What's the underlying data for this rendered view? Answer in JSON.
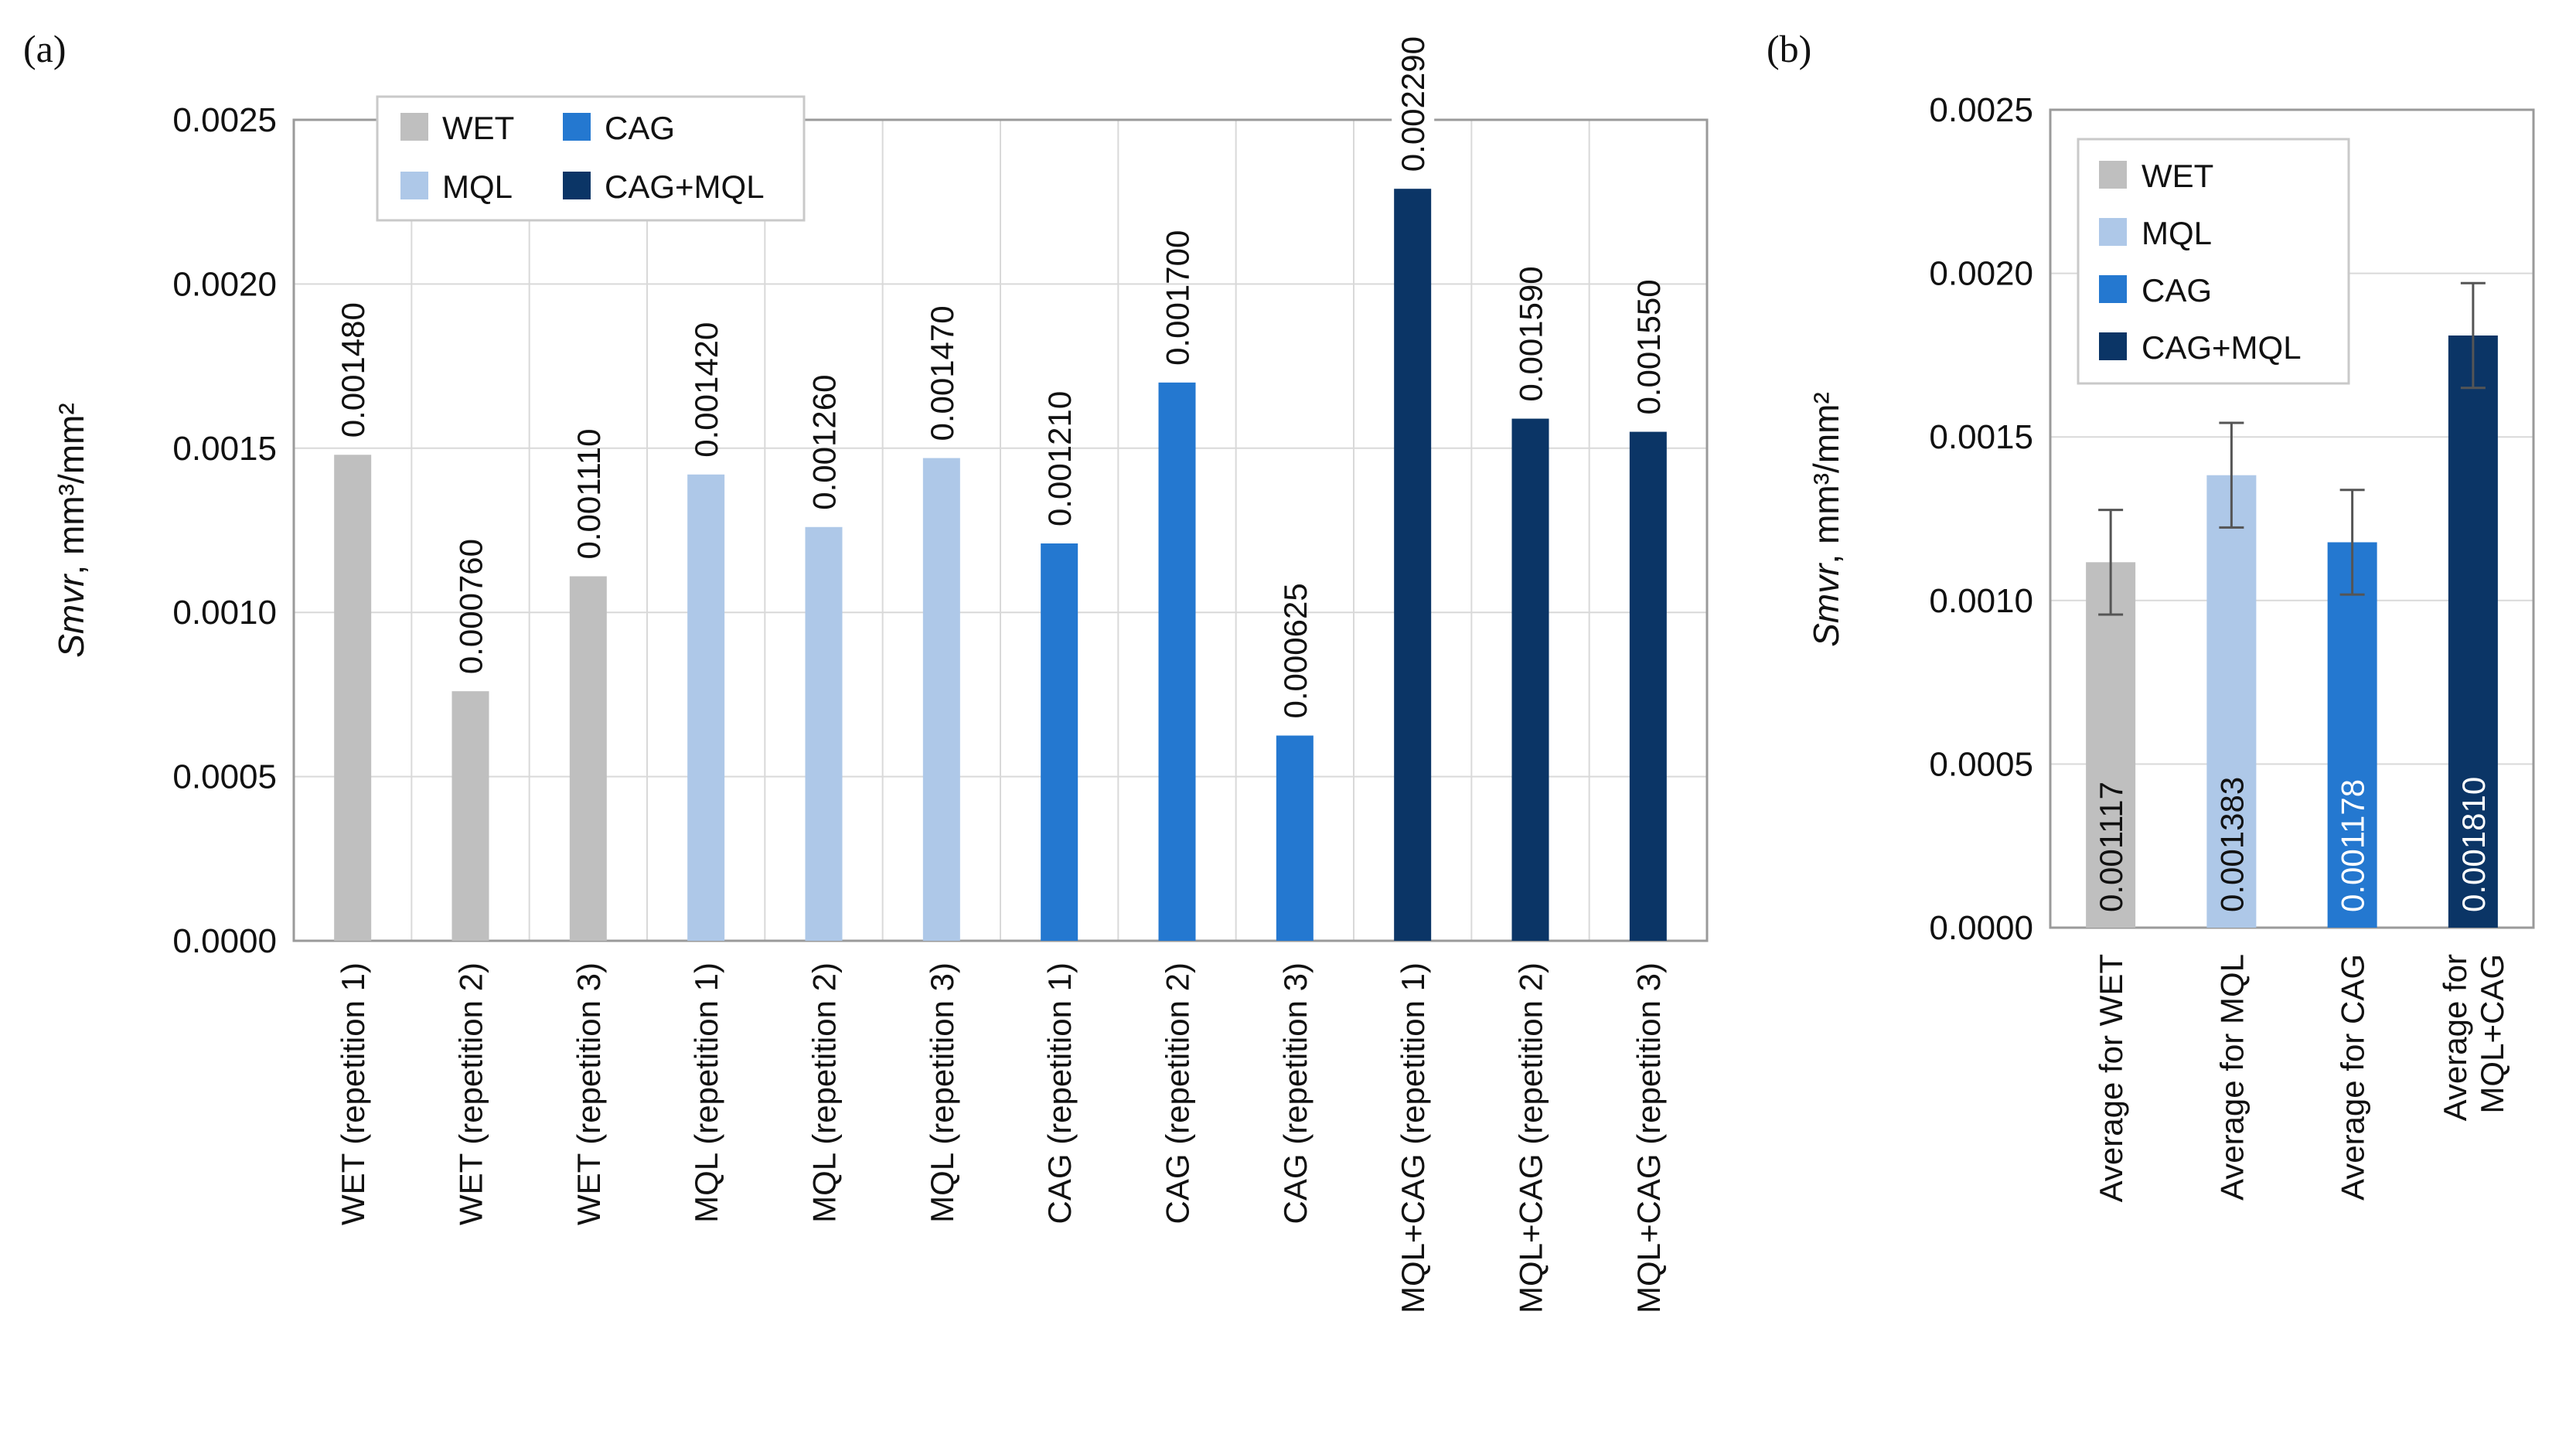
{
  "colors": {
    "WET": "#bfbfbf",
    "MQL": "#aec8e8",
    "CAG": "#2478d0",
    "CAG+MQL": "#0b3566"
  },
  "chart_data": [
    {
      "panel_label": "(a)",
      "type": "bar",
      "ylabel_italic": "Smvr",
      "ylabel_rest": ", mm³/mm²",
      "ylim": [
        0,
        0.0025
      ],
      "yticks": [
        "0.0000",
        "0.0005",
        "0.0010",
        "0.0015",
        "0.0020",
        "0.0025"
      ],
      "legend": [
        "WET",
        "CAG",
        "MQL",
        "CAG+MQL"
      ],
      "categories": [
        "WET (repetition 1)",
        "WET (repetition 2)",
        "WET (repetition 3)",
        "MQL (repetition 1)",
        "MQL (repetition 2)",
        "MQL (repetition 3)",
        "CAG (repetition 1)",
        "CAG (repetition 2)",
        "CAG (repetition 3)",
        "MQL+CAG (repetition 1)",
        "MQL+CAG (repetition 2)",
        "MQL+CAG (repetition 3)"
      ],
      "groups": [
        "WET",
        "WET",
        "WET",
        "MQL",
        "MQL",
        "MQL",
        "CAG",
        "CAG",
        "CAG",
        "CAG+MQL",
        "CAG+MQL",
        "CAG+MQL"
      ],
      "values": [
        0.00148,
        0.00076,
        0.00111,
        0.00142,
        0.00126,
        0.00147,
        0.00121,
        0.0017,
        0.000625,
        0.00229,
        0.00159,
        0.00155
      ],
      "value_labels": [
        "0.001480",
        "0.000760",
        "0.001110",
        "0.001420",
        "0.001260",
        "0.001470",
        "0.001210",
        "0.001700",
        "0.000625",
        "0.002290",
        "0.001590",
        "0.001550"
      ]
    },
    {
      "panel_label": "(b)",
      "type": "bar",
      "ylabel_italic": "Smvr",
      "ylabel_rest": ", mm³/mm²",
      "ylim": [
        0,
        0.0025
      ],
      "yticks": [
        "0.0000",
        "0.0005",
        "0.0010",
        "0.0015",
        "0.0020",
        "0.0025"
      ],
      "legend": [
        "WET",
        "MQL",
        "CAG",
        "CAG+MQL"
      ],
      "categories": [
        [
          "Average for WET"
        ],
        [
          "Average for MQL"
        ],
        [
          "Average for CAG"
        ],
        [
          "Average for",
          "MQL+CAG"
        ]
      ],
      "groups": [
        "WET",
        "MQL",
        "CAG",
        "CAG+MQL"
      ],
      "values": [
        0.001117,
        0.001383,
        0.001178,
        0.00181
      ],
      "errors": [
        0.00016,
        0.00016,
        0.00016,
        0.00016
      ],
      "value_labels": [
        "0.001117",
        "0.001383",
        "0.001178",
        "0.001810"
      ]
    }
  ]
}
